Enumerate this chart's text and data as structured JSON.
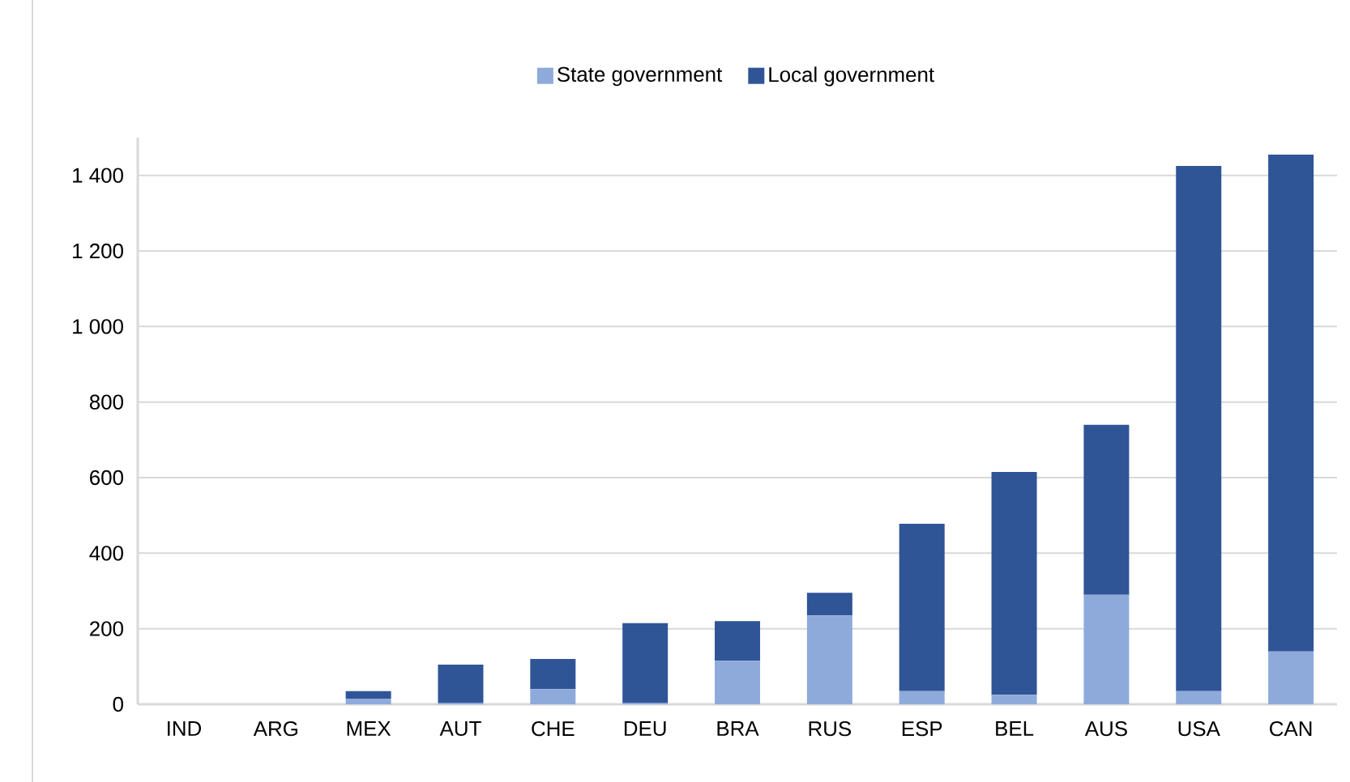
{
  "chart_data": {
    "type": "bar",
    "stacked": true,
    "categories": [
      "IND",
      "ARG",
      "MEX",
      "AUT",
      "CHE",
      "DEU",
      "BRA",
      "RUS",
      "ESP",
      "BEL",
      "AUS",
      "USA",
      "CAN"
    ],
    "series": [
      {
        "name": "State government",
        "color": "#8eaadb",
        "values": [
          0,
          0,
          15,
          3,
          40,
          3,
          115,
          235,
          35,
          25,
          290,
          35,
          140
        ]
      },
      {
        "name": "Local government",
        "color": "#2f5597",
        "values": [
          0,
          0,
          20,
          102,
          80,
          212,
          105,
          60,
          443,
          590,
          450,
          1390,
          1315
        ]
      }
    ],
    "ylim": [
      0,
      1500
    ],
    "yticks": [
      0,
      200,
      400,
      600,
      800,
      {
        "value": 1000,
        "label": "1 000"
      },
      {
        "value": 1200,
        "label": "1 200"
      },
      {
        "value": 1400,
        "label": "1 400"
      }
    ],
    "grid": "y",
    "legend": "top"
  }
}
